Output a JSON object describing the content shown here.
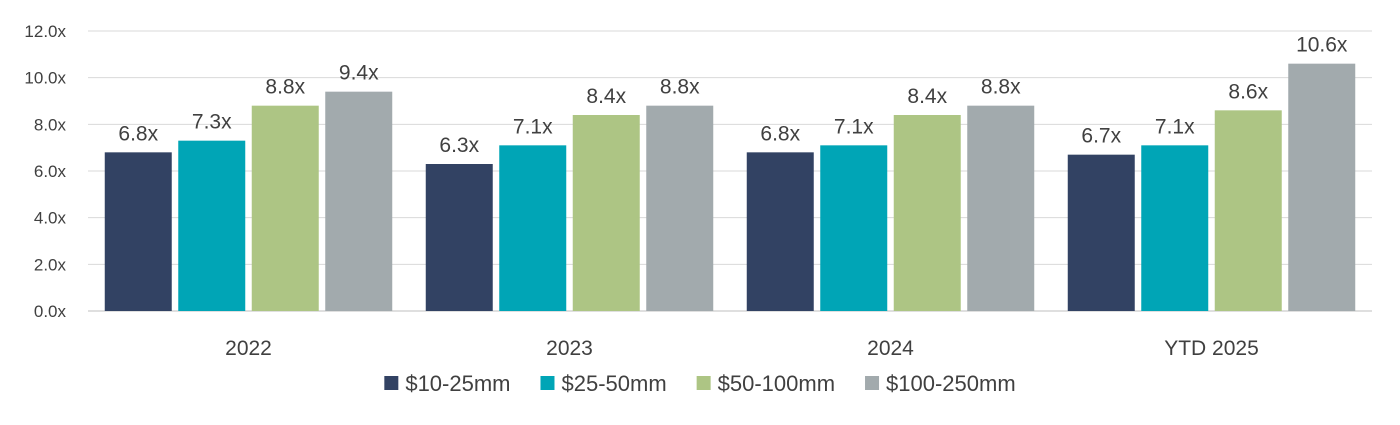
{
  "chart_data": {
    "type": "bar",
    "title": "",
    "xlabel": "",
    "ylabel": "",
    "categories": [
      "2022",
      "2023",
      "2024",
      "YTD 2025"
    ],
    "ylim": [
      0,
      12
    ],
    "yticks": [
      "0.0x",
      "2.0x",
      "4.0x",
      "6.0x",
      "8.0x",
      "10.0x",
      "12.0x"
    ],
    "ytick_values": [
      0,
      2,
      4,
      6,
      8,
      10,
      12
    ],
    "grid": true,
    "legend_position": "bottom",
    "series": [
      {
        "name": "$10-25mm",
        "color": "#324263",
        "values": [
          6.8,
          6.3,
          6.8,
          6.7
        ],
        "labels": [
          "6.8x",
          "6.3x",
          "6.8x",
          "6.7x"
        ]
      },
      {
        "name": "$25-50mm",
        "color": "#00A5B6",
        "values": [
          7.3,
          7.1,
          7.1,
          7.1
        ],
        "labels": [
          "7.3x",
          "7.1x",
          "7.1x",
          "7.1x"
        ]
      },
      {
        "name": "$50-100mm",
        "color": "#ADC584",
        "values": [
          8.8,
          8.4,
          8.4,
          8.6
        ],
        "labels": [
          "8.8x",
          "8.4x",
          "8.4x",
          "8.6x"
        ]
      },
      {
        "name": "$100-250mm",
        "color": "#A2AAAD",
        "values": [
          9.4,
          8.8,
          8.8,
          10.6
        ],
        "labels": [
          "9.4x",
          "8.8x",
          "8.8x",
          "10.6x"
        ]
      }
    ]
  }
}
